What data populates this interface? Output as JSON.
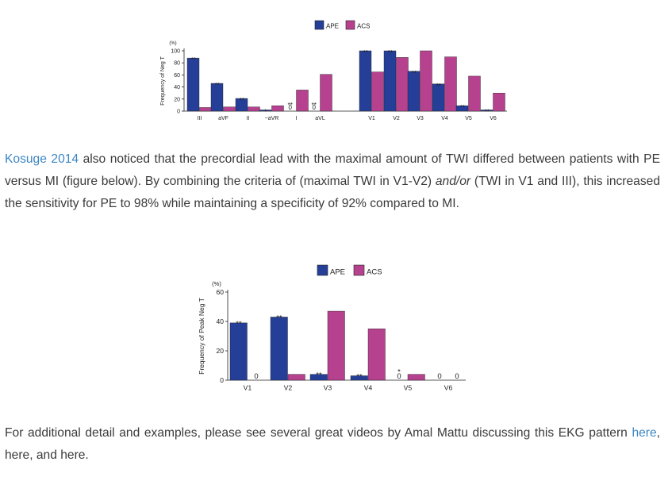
{
  "chart_data": [
    {
      "type": "bar",
      "legend": [
        "APE",
        "ACS"
      ],
      "legend_position": "top-center",
      "ylabel": "Frequency of Neg T",
      "yunit": "(%)",
      "ylim": [
        0,
        100
      ],
      "yticks": [
        0,
        20,
        40,
        60,
        80,
        100
      ],
      "categories": [
        "III",
        "aVF",
        "II",
        "−aVR",
        "I",
        "aVL",
        "V1",
        "V2",
        "V3",
        "V4",
        "V5",
        "V6"
      ],
      "series": [
        {
          "name": "APE",
          "color": "#253f98",
          "values": [
            88,
            46,
            21,
            2,
            0,
            0,
            100,
            100,
            66,
            45,
            9,
            2
          ]
        },
        {
          "name": "ACS",
          "color": "#b6418f",
          "values": [
            6,
            7,
            7,
            9,
            35,
            61,
            65,
            89,
            100,
            90,
            58,
            30
          ]
        }
      ],
      "annotations": [
        {
          "category": "III",
          "series": "APE",
          "text": "**"
        },
        {
          "category": "aVF",
          "series": "APE",
          "text": "**"
        },
        {
          "category": "II",
          "series": "APE",
          "text": "**"
        },
        {
          "category": "−aVR",
          "series": "APE",
          "text": "*"
        },
        {
          "category": "I",
          "series": "APE",
          "text": "**"
        },
        {
          "category": "aVL",
          "series": "APE",
          "text": "**"
        },
        {
          "category": "V1",
          "series": "APE",
          "text": "**"
        },
        {
          "category": "V2",
          "series": "APE",
          "text": "**"
        },
        {
          "category": "V3",
          "series": "APE",
          "text": "**"
        },
        {
          "category": "V4",
          "series": "APE",
          "text": "**"
        },
        {
          "category": "V5",
          "series": "APE",
          "text": "**"
        },
        {
          "category": "V6",
          "series": "APE",
          "text": "**"
        }
      ],
      "zero_labels": [
        {
          "category": "I",
          "series": "APE",
          "text": "0"
        },
        {
          "category": "aVL",
          "series": "APE",
          "text": "0"
        }
      ]
    },
    {
      "type": "bar",
      "legend": [
        "APE",
        "ACS"
      ],
      "legend_position": "top-center",
      "ylabel": "Frequency of Peak Neg T",
      "yunit": "(%)",
      "ylim": [
        0,
        60
      ],
      "yticks": [
        0,
        20,
        40,
        60
      ],
      "categories": [
        "V1",
        "V2",
        "V3",
        "V4",
        "V5",
        "V6"
      ],
      "series": [
        {
          "name": "APE",
          "color": "#253f98",
          "values": [
            39,
            43,
            4,
            3,
            0,
            0
          ]
        },
        {
          "name": "ACS",
          "color": "#b6418f",
          "values": [
            0,
            4,
            47,
            35,
            4,
            0
          ]
        }
      ],
      "annotations": [
        {
          "category": "V1",
          "series": "APE",
          "text": "**"
        },
        {
          "category": "V2",
          "series": "APE",
          "text": "**"
        },
        {
          "category": "V3",
          "series": "APE",
          "text": "**"
        },
        {
          "category": "V4",
          "series": "APE",
          "text": "**"
        },
        {
          "category": "V5",
          "series": "APE",
          "text": "*"
        }
      ],
      "zero_labels": [
        {
          "category": "V1",
          "series": "ACS",
          "text": "0"
        },
        {
          "category": "V5",
          "series": "APE",
          "text": "0"
        },
        {
          "category": "V6",
          "series": "APE",
          "text": "0"
        },
        {
          "category": "V6",
          "series": "ACS",
          "text": "0"
        }
      ]
    }
  ],
  "paragraph1": {
    "link": "Kosuge 2014",
    "text_a": " also noticed that the precordial lead with the maximal amount of TWI differed between patients with PE versus MI (figure below).   By combining the criteria of (maximal TWI in V1-V2) ",
    "em": "and/or",
    "text_b": " (TWI in V1 and III), this increased the sensitivity for PE to 98% while maintaining a specificity of 92% compared to MI."
  },
  "paragraph2": {
    "text_a": "For additional detail and examples, please see several great videos by Amal Mattu discussing this EKG pattern ",
    "link": "here",
    "text_b": ", here, and here."
  }
}
